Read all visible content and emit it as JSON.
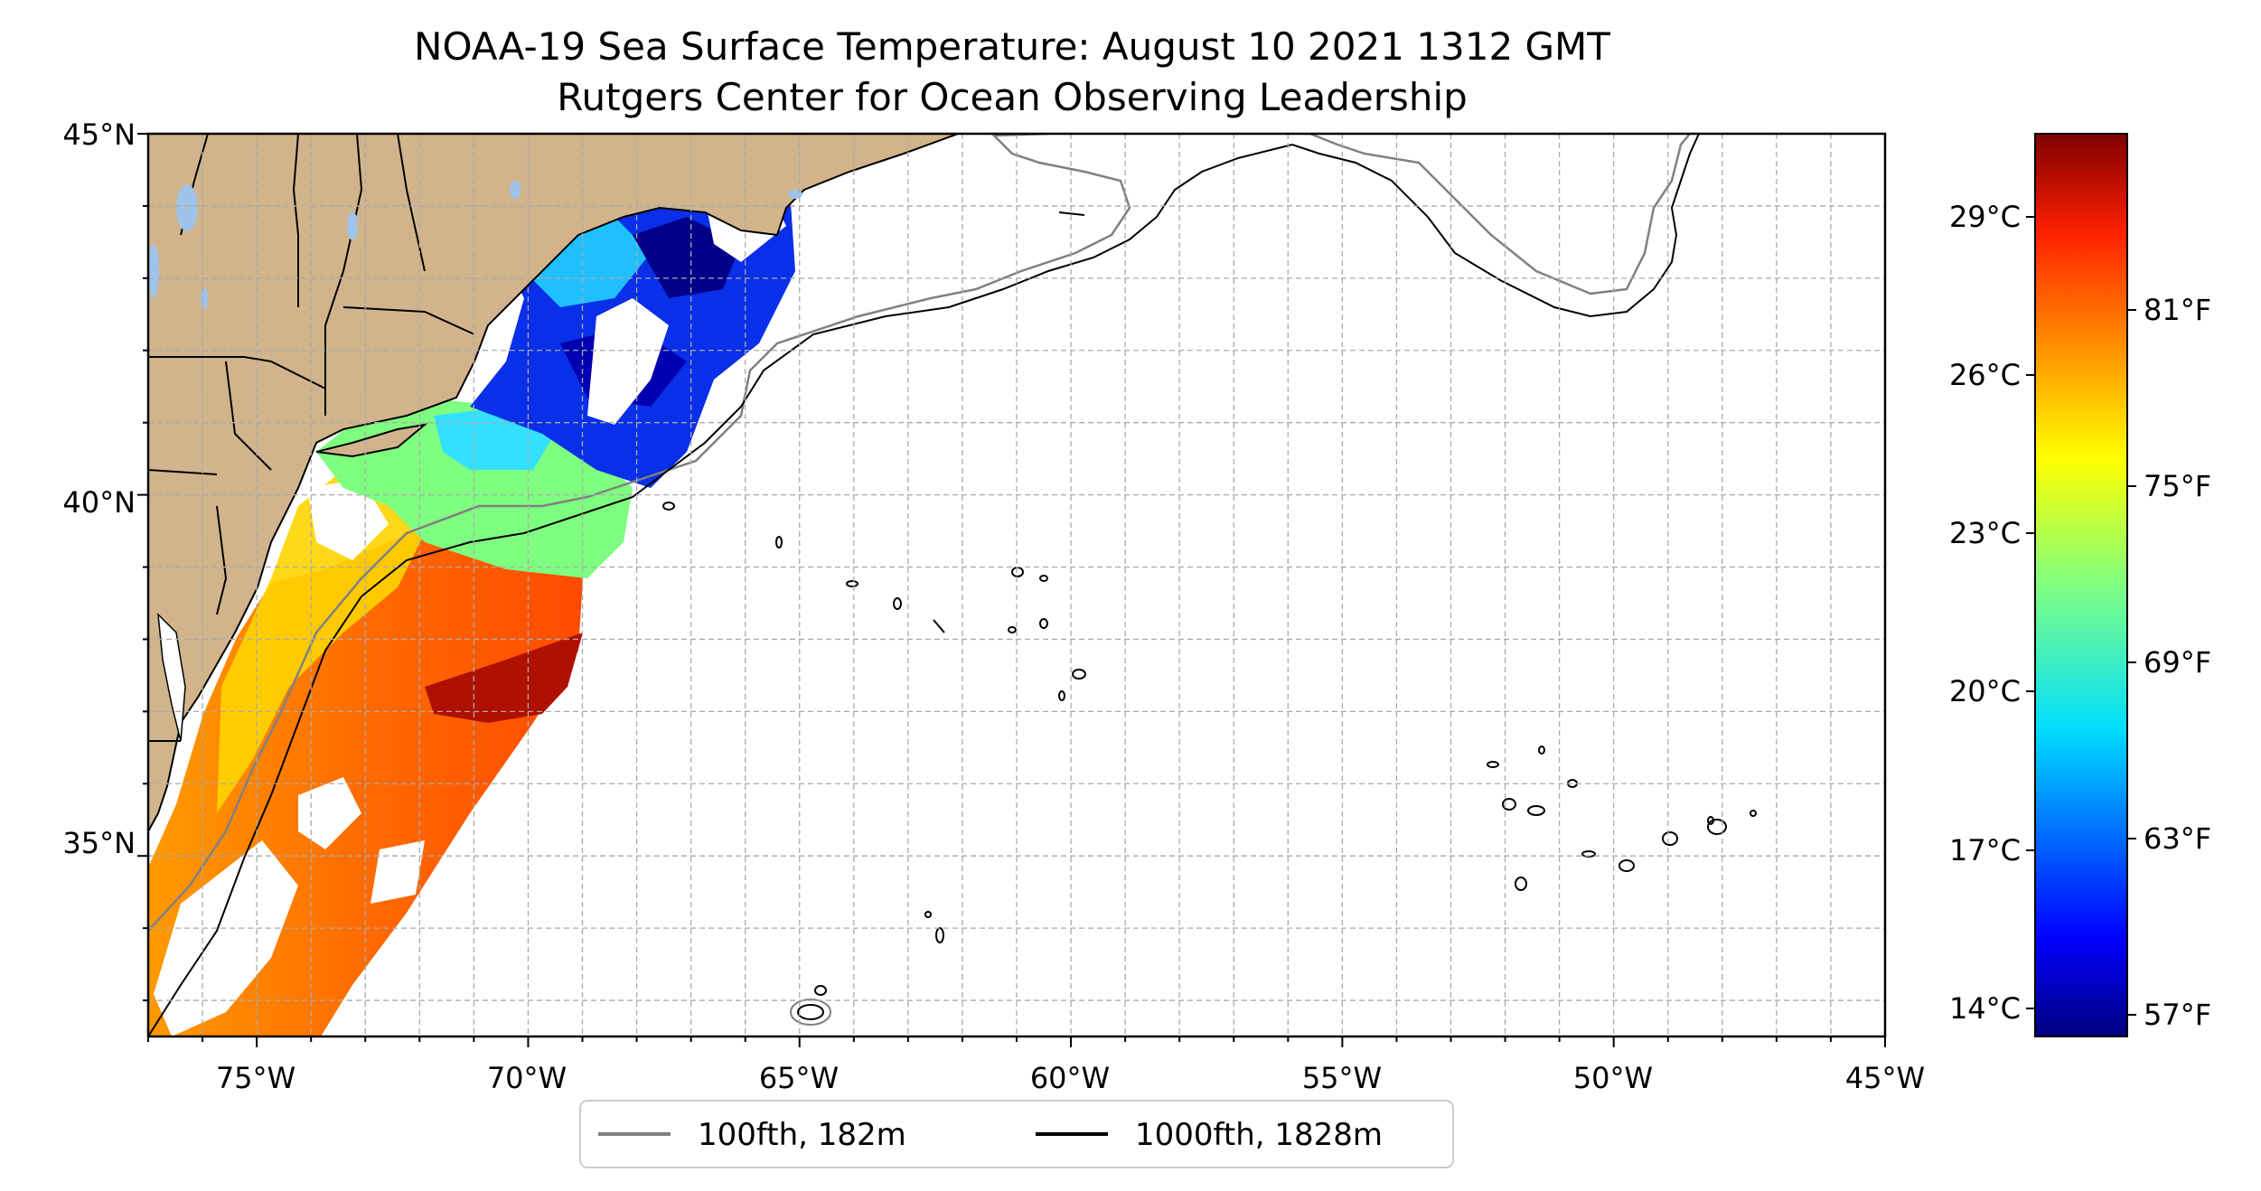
{
  "title": {
    "line1": "NOAA-19 Sea Surface Temperature: August 10 2021 1312 GMT",
    "line2": "Rutgers Center for Ocean Observing Leadership"
  },
  "map": {
    "lon_range": [
      -77,
      -45
    ],
    "lat_range": [
      32.5,
      45
    ],
    "land_color": "#d2b48c",
    "lake_color": "#9fc3e8",
    "grid_step_deg": 1,
    "grid_style": "dashed",
    "lon_tick_labels": [
      "75°W",
      "70°W",
      "65°W",
      "60°W",
      "55°W",
      "50°W",
      "45°W"
    ],
    "lat_tick_labels": [
      "45°N",
      "40°N",
      "35°N"
    ]
  },
  "colorbar": {
    "colormap": "jet",
    "celsius_labels": [
      "29°C",
      "26°C",
      "23°C",
      "20°C",
      "17°C",
      "14°C"
    ],
    "fahrenheit_labels": [
      "81°F",
      "75°F",
      "69°F",
      "63°F",
      "57°F"
    ]
  },
  "legend": {
    "items": [
      {
        "label": "100fth, 182m",
        "color": "#808080"
      },
      {
        "label": "1000fth, 1828m",
        "color": "#000000"
      }
    ]
  }
}
